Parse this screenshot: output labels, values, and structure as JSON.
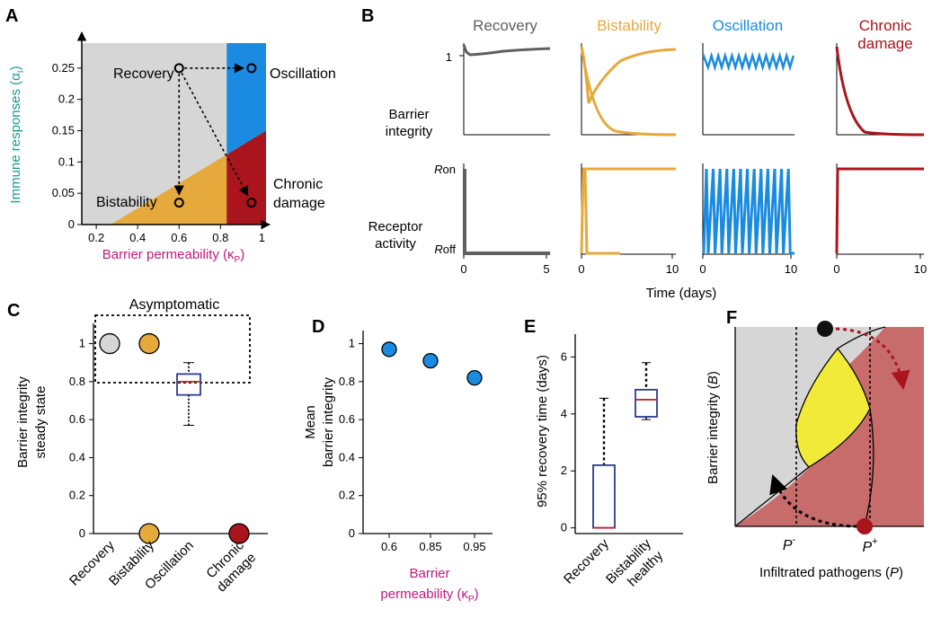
{
  "colors": {
    "recovery": "#5f5f5f",
    "bistability": "#e6a93c",
    "oscillation": "#1a8be0",
    "chronic": "#a9141d",
    "region_gray": "#d6d6d6",
    "region_red": "#c76b6b",
    "yellow": "#f2ea38",
    "box_blue": "#2b3b91",
    "median_red": "#c4292b",
    "axis_green": "#199b8c",
    "axis_magenta": "#c2187e"
  },
  "panel_letters": [
    "A",
    "B",
    "C",
    "D",
    "E",
    "F"
  ],
  "chart_data": [
    {
      "panel": "A",
      "type": "phase-diagram",
      "xlabel_pre": "Barrier permeability (κ",
      "xlabel_sub": "P",
      "xlabel_post": ")",
      "ylabel_pre": "Immune responses (α",
      "ylabel_sub": "I",
      "ylabel_post": ")",
      "xticks": [
        "0.2",
        "0.4",
        "0.6",
        "0.8",
        "1"
      ],
      "xtick_values": [
        0.2,
        0.4,
        0.6,
        0.8,
        1.0
      ],
      "yticks": [
        "0",
        "0.05",
        "0.1",
        "0.15",
        "0.2",
        "0.25"
      ],
      "ytick_values": [
        0,
        0.05,
        0.1,
        0.15,
        0.2,
        0.25
      ],
      "xlim": [
        0.13,
        1.02
      ],
      "ylim": [
        0,
        0.29
      ],
      "region_labels": {
        "recovery": "Recovery",
        "oscillation": "Oscillation",
        "bistability": "Bistability",
        "chronic_line1": "Chronic",
        "chronic_line2": "damage"
      },
      "points": [
        {
          "name": "recovery",
          "x": 0.6,
          "y": 0.25
        },
        {
          "name": "oscillation",
          "x": 0.95,
          "y": 0.25
        },
        {
          "name": "bistability",
          "x": 0.6,
          "y": 0.035
        },
        {
          "name": "chronic",
          "x": 0.95,
          "y": 0.035
        }
      ],
      "boundaries": {
        "bistability_line": [
          [
            0.27,
            0
          ],
          [
            0.83,
            0.112
          ]
        ],
        "chronic_vertical_x": 0.83,
        "oscillation_lower_edge": [
          [
            0.83,
            0.112
          ],
          [
            1.02,
            0.15
          ]
        ]
      }
    },
    {
      "panel": "B",
      "type": "line",
      "titles": [
        "Recovery",
        "Bistability",
        "Oscillation",
        "Chronic",
        "damage"
      ],
      "row_labels": {
        "top_line1": "Barrier",
        "top_line2": "integrity",
        "bottom_line1": "Receptor",
        "bottom_line2": "activity"
      },
      "top_ytick": "1",
      "bottom_yticks": {
        "on_italic": "R",
        "on": "on",
        "off_italic": "R",
        "off": "off"
      },
      "xticks": [
        [
          "0",
          "5"
        ],
        [
          "0",
          "10"
        ],
        [
          "0",
          "10"
        ],
        [
          "0",
          "10"
        ]
      ],
      "xlabel": "Time (days)"
    },
    {
      "panel": "C",
      "type": "scatter-box",
      "ylabel_line1": "Barrier integrity",
      "ylabel_line2": "steady state",
      "yticks": [
        "0",
        "0.2",
        "0.4",
        "0.6",
        "0.8",
        "1"
      ],
      "ytick_values": [
        0,
        0.2,
        0.4,
        0.6,
        0.8,
        1.0
      ],
      "ylim": [
        0,
        1.05
      ],
      "categories": [
        "Recovery",
        "Bistability",
        "Oscillation",
        "Chronic damage"
      ],
      "category_lines": [
        [
          "Recovery"
        ],
        [
          "Bistability"
        ],
        [
          "Oscillation"
        ],
        [
          "Chronic",
          "damage"
        ]
      ],
      "points": [
        {
          "category": "Recovery",
          "y": 1.0
        },
        {
          "category": "Bistability",
          "y": 1.0
        },
        {
          "category": "Bistability",
          "y": 0.0
        },
        {
          "category": "Chronic damage",
          "y": 0.0
        }
      ],
      "box": {
        "category": "Oscillation",
        "min": 0.57,
        "q1": 0.73,
        "median": 0.8,
        "q3": 0.84,
        "max": 0.9
      },
      "annotation": "Asymptomatic"
    },
    {
      "panel": "D",
      "type": "scatter",
      "ylabel_line1": "Mean",
      "ylabel_line2": "barrier integrity",
      "xlabel_line1": "Barrier",
      "xlabel_pre": "permeability (κ",
      "xlabel_sub": "P",
      "xlabel_post": ")",
      "categories": [
        "0.6",
        "0.85",
        "0.95"
      ],
      "values": [
        0.97,
        0.91,
        0.82
      ],
      "yticks": [
        "0",
        "0.2",
        "0.4",
        "0.6",
        "0.8",
        "1"
      ],
      "ytick_values": [
        0,
        0.2,
        0.4,
        0.6,
        0.8,
        1.0
      ],
      "ylim": [
        0,
        1.05
      ]
    },
    {
      "panel": "E",
      "type": "box",
      "ylabel": "95% recovery time (days)",
      "yticks": [
        "0",
        "2",
        "4",
        "6"
      ],
      "ytick_values": [
        0,
        2,
        4,
        6
      ],
      "ylim": [
        -0.2,
        6.8
      ],
      "category_lines": [
        [
          "Recovery"
        ],
        [
          "Bistability",
          "healthy"
        ]
      ],
      "boxes": [
        {
          "category": "Recovery",
          "min": 0,
          "q1": 0,
          "median": 0,
          "q3": 2.2,
          "max": 4.55
        },
        {
          "category": "Bistability healthy",
          "min": 3.8,
          "q1": 3.9,
          "median": 4.5,
          "q3": 4.85,
          "max": 5.8
        }
      ]
    },
    {
      "panel": "F",
      "type": "phase-portrait",
      "ylabel_pre": "Barrier integrity (",
      "ylabel_var": "B",
      "ylabel_post": ")",
      "xlabel_pre": "Infiltrated pathogens (",
      "xlabel_var": "P",
      "xlabel_post": ")",
      "p_minus": "P",
      "p_minus_sup": "-",
      "p_plus": "P",
      "p_plus_sup": "+"
    }
  ]
}
